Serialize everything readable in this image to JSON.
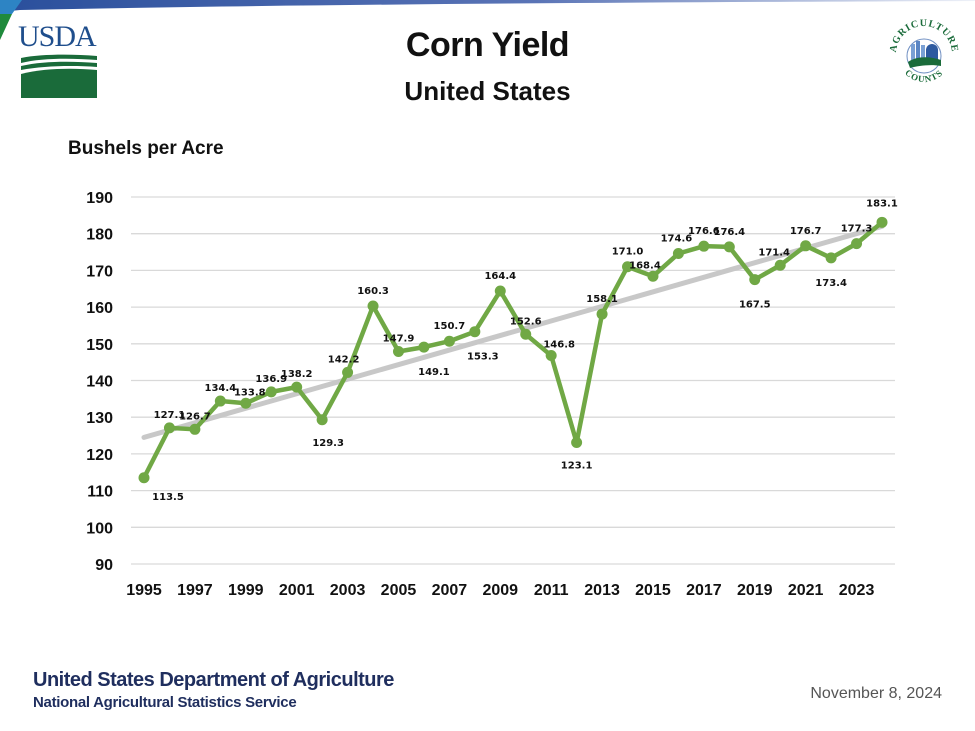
{
  "header": {
    "logo_left_text": "USDA",
    "logo_right_top_text": "AGRICULTURE",
    "logo_right_bottom_text": "COUNTS",
    "title": "Corn Yield",
    "subtitle": "United States"
  },
  "footer": {
    "org_line1": "United States Department of Agriculture",
    "org_line2": "National Agricultural Statistics Service",
    "date": "November 8, 2024"
  },
  "colors": {
    "series": "#70a845",
    "trend": "#c8c8c8",
    "grid": "#d9d9d9",
    "usda_blue": "#1f4e8c",
    "usda_green": "#1a6b3a",
    "footer_text": "#1f2e5e"
  },
  "chart_data": {
    "type": "line",
    "title": "Corn Yield",
    "subtitle": "United States",
    "xlabel": "",
    "ylabel": "Bushels per Acre",
    "ylim": [
      90,
      190
    ],
    "yticks": [
      90,
      100,
      110,
      120,
      130,
      140,
      150,
      160,
      170,
      180,
      190
    ],
    "xticks": [
      1995,
      1997,
      1999,
      2001,
      2003,
      2005,
      2007,
      2009,
      2011,
      2013,
      2015,
      2017,
      2019,
      2021,
      2023
    ],
    "grid": true,
    "legend": "none",
    "x": [
      1995,
      1996,
      1997,
      1998,
      1999,
      2000,
      2001,
      2002,
      2003,
      2004,
      2005,
      2006,
      2007,
      2008,
      2009,
      2010,
      2011,
      2012,
      2013,
      2014,
      2015,
      2016,
      2017,
      2018,
      2019,
      2020,
      2021,
      2022,
      2023,
      2024
    ],
    "series": [
      {
        "name": "Corn Yield",
        "values": [
          113.5,
          127.1,
          126.7,
          134.4,
          133.8,
          136.9,
          138.2,
          129.3,
          142.2,
          160.3,
          147.9,
          149.1,
          150.7,
          153.3,
          164.4,
          152.6,
          146.8,
          123.1,
          158.1,
          171.0,
          168.4,
          174.6,
          176.6,
          176.4,
          167.5,
          171.4,
          176.7,
          173.4,
          177.3,
          183.1
        ],
        "labels": [
          "113.5",
          "127.1",
          "126.7",
          "134.4",
          "133.8",
          "136.9",
          "138.2",
          "129.3",
          "142.2",
          "160.3",
          "147.9",
          "149.1",
          "150.7",
          "153.3",
          "164.4",
          "152.6",
          "146.8",
          "123.1",
          "158.1",
          "171.0",
          "168.4",
          "174.6",
          "176.6",
          "176.4",
          "167.5",
          "171.4",
          "176.7",
          "173.4",
          "177.3",
          "183.1"
        ],
        "label_position": [
          "below",
          "above",
          "above",
          "above",
          "above",
          "above",
          "above",
          "below",
          "above",
          "above",
          "above",
          "below",
          "above",
          "below",
          "above",
          "above",
          "above",
          "below",
          "above",
          "above",
          "above",
          "above",
          "above",
          "above",
          "below",
          "above",
          "above",
          "below",
          "above",
          "above"
        ]
      },
      {
        "name": "Trend",
        "type": "linear-trend",
        "start": [
          1995,
          124.5
        ],
        "end": [
          2024,
          182.0
        ]
      }
    ]
  }
}
